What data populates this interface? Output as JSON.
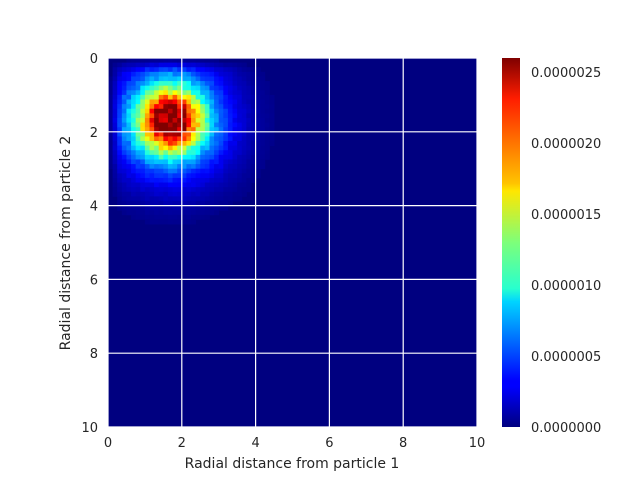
{
  "chart_data": {
    "type": "heatmap",
    "title": "",
    "xlabel": "Radial distance from particle 1",
    "ylabel": "Radial distance from particle 2",
    "xlim": [
      0,
      10
    ],
    "ylim": [
      10,
      0
    ],
    "y_axis_inverted": true,
    "x_ticks": [
      "0",
      "2",
      "4",
      "6",
      "8",
      "10"
    ],
    "y_ticks": [
      "0",
      "2",
      "4",
      "6",
      "8",
      "10"
    ],
    "grid": true,
    "colormap": "jet",
    "color_range": [
      0,
      2.6e-06
    ],
    "colorbar_ticks": [
      "0.0000000",
      "0.0000005",
      "0.0000010",
      "0.0000015",
      "0.0000020",
      "0.0000025"
    ],
    "peak": {
      "x": 1.7,
      "y": 1.7,
      "value": 2.6e-06
    },
    "description_of_distribution": "single concentrated maximum near (1.7, 1.7), decaying to ~0 beyond radius ~4"
  },
  "colors": {
    "grid": "#ffffff",
    "text": "#262626",
    "background_low": "#00007f"
  }
}
